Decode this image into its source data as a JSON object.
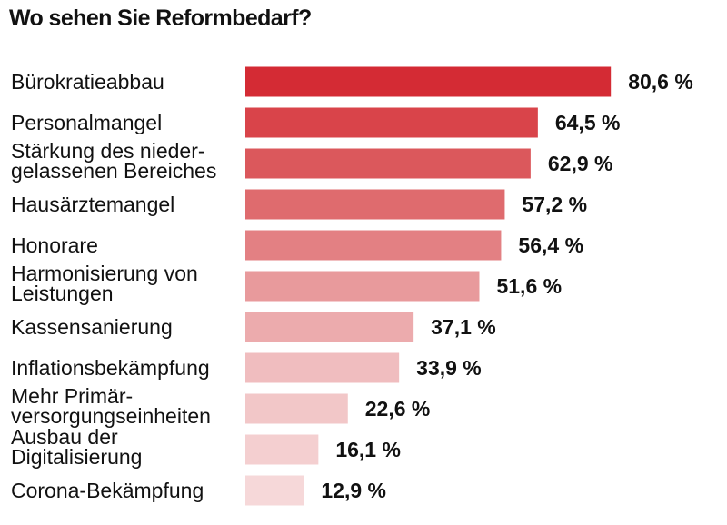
{
  "chart_data": {
    "type": "bar",
    "orientation": "horizontal",
    "title": "Wo sehen Sie Reformbedarf?",
    "categories": [
      [
        "Bürokratieabbau"
      ],
      [
        "Personalmangel"
      ],
      [
        "Stärkung des nieder-",
        "gelassenen Bereiches"
      ],
      [
        "Hausärztemangel"
      ],
      [
        "Honorare"
      ],
      [
        "Harmonisierung von",
        "Leistungen"
      ],
      [
        "Kassensanierung"
      ],
      [
        "Inflationsbekämpfung"
      ],
      [
        "Mehr Primär-",
        "versorgungseinheiten"
      ],
      [
        "Ausbau der",
        "Digitalisierung"
      ],
      [
        "Corona-Bekämpfung"
      ]
    ],
    "values": [
      80.6,
      64.5,
      62.9,
      57.2,
      56.4,
      51.6,
      37.1,
      33.9,
      22.6,
      16.1,
      12.9
    ],
    "value_labels": [
      "80,6 %",
      "64,5 %",
      "62,9 %",
      "57,2 %",
      "56,4 %",
      "51,6 %",
      "37,1 %",
      "33,9 %",
      "22,6 %",
      "16,1 %",
      "12,9 %"
    ],
    "bar_colors": [
      "#d42b34",
      "#d9444a",
      "#db585c",
      "#df6b6e",
      "#e38083",
      "#e89a9c",
      "#ecabad",
      "#f0bdbf",
      "#f2c7c8",
      "#f4cfd0",
      "#f6d8d9"
    ],
    "xlabel": "",
    "ylabel": "",
    "xlim": [
      0,
      100
    ],
    "grid": false,
    "legend": "none"
  }
}
